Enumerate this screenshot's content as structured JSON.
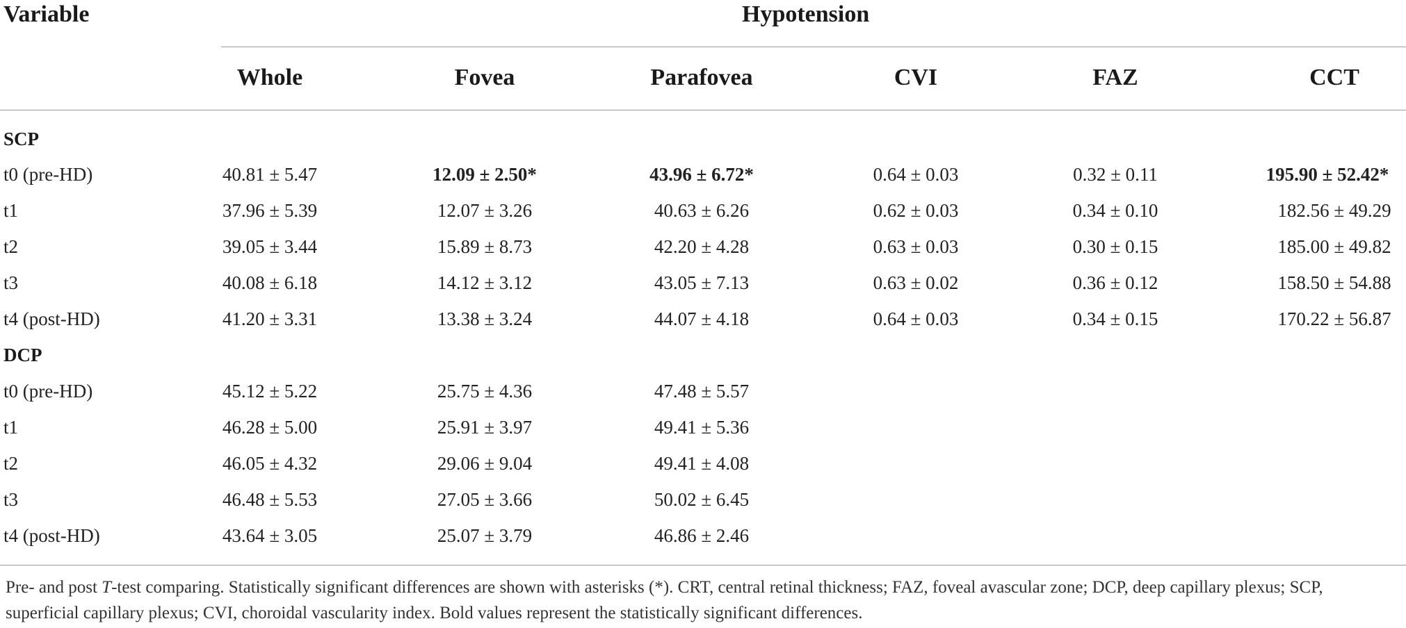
{
  "header": {
    "variable": "Variable",
    "group": "Hypotension",
    "columns": [
      "Whole",
      "Fovea",
      "Parafovea",
      "CVI",
      "FAZ",
      "CCT"
    ]
  },
  "sections": [
    {
      "name": "SCP",
      "rows": [
        {
          "label": "t0 (pre-HD)",
          "cells": [
            "40.81 ± 5.47",
            "12.09 ± 2.50*",
            "43.96 ± 6.72*",
            "0.64 ± 0.03",
            "0.32 ± 0.11",
            "195.90 ± 52.42*"
          ]
        },
        {
          "label": "t1",
          "cells": [
            "37.96 ± 5.39",
            "12.07 ± 3.26",
            "40.63 ± 6.26",
            "0.62 ± 0.03",
            "0.34 ± 0.10",
            "182.56 ± 49.29"
          ]
        },
        {
          "label": "t2",
          "cells": [
            "39.05 ± 3.44",
            "15.89 ± 8.73",
            "42.20 ± 4.28",
            "0.63 ± 0.03",
            "0.30 ± 0.15",
            "185.00 ± 49.82"
          ]
        },
        {
          "label": "t3",
          "cells": [
            "40.08 ± 6.18",
            "14.12 ± 3.12",
            "43.05 ± 7.13",
            "0.63 ± 0.02",
            "0.36 ± 0.12",
            "158.50 ± 54.88"
          ]
        },
        {
          "label": "t4 (post-HD)",
          "cells": [
            "41.20 ± 3.31",
            "13.38 ± 3.24",
            "44.07 ± 4.18",
            "0.64 ± 0.03",
            "0.34 ± 0.15",
            "170.22 ± 56.87"
          ]
        }
      ]
    },
    {
      "name": "DCP",
      "rows": [
        {
          "label": "t0 (pre-HD)",
          "cells": [
            "45.12 ± 5.22",
            "25.75 ± 4.36",
            "47.48 ± 5.57",
            "",
            "",
            ""
          ]
        },
        {
          "label": "t1",
          "cells": [
            "46.28 ± 5.00",
            "25.91 ± 3.97",
            "49.41 ± 5.36",
            "",
            "",
            ""
          ]
        },
        {
          "label": "t2",
          "cells": [
            "46.05 ± 4.32",
            "29.06 ± 9.04",
            "49.41 ± 4.08",
            "",
            "",
            ""
          ]
        },
        {
          "label": "t3",
          "cells": [
            "46.48 ± 5.53",
            "27.05 ± 3.66",
            "50.02 ± 6.45",
            "",
            "",
            ""
          ]
        },
        {
          "label": "t4 (post-HD)",
          "cells": [
            "43.64 ± 3.05",
            "25.07 ± 3.79",
            "46.86 ± 2.46",
            "",
            "",
            ""
          ]
        }
      ]
    }
  ],
  "footnote": {
    "part1": "Pre- and post ",
    "t_symbol": "T",
    "part2": "-test comparing. Statistically significant differences are shown with asterisks (*). CRT, central retinal thickness; FAZ, foveal avascular zone; DCP, deep capillary plexus; SCP, superficial capillary plexus; CVI, choroidal vascularity index. Bold values represent the statistically significant differences."
  }
}
